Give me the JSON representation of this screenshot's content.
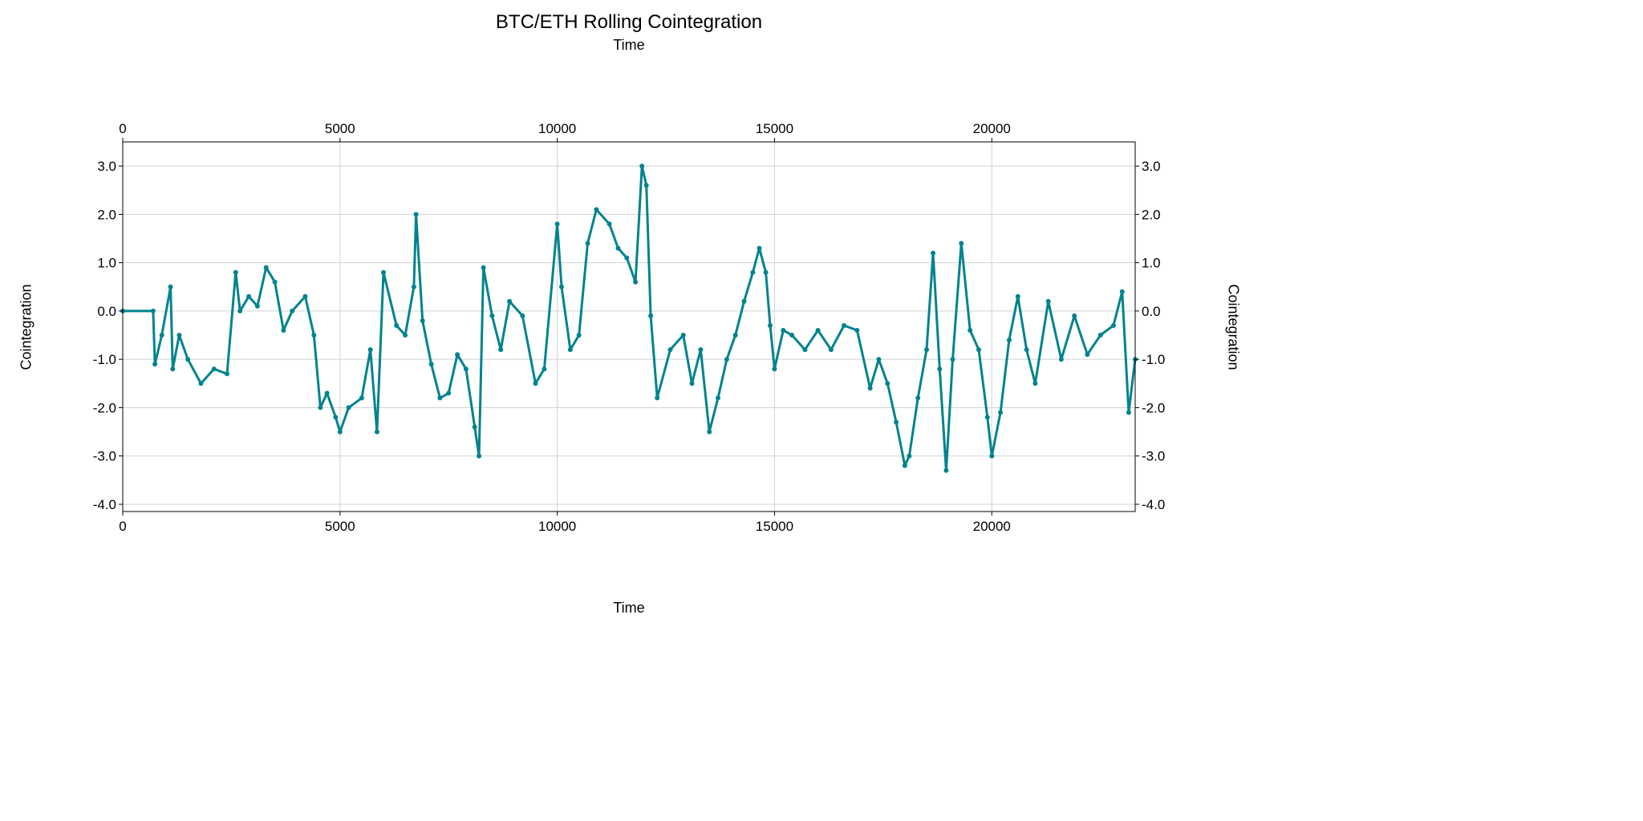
{
  "chart_data": {
    "type": "scatter",
    "title": "BTC/ETH Rolling Cointegration",
    "x_axis_top_label": "Time",
    "xlabel": "Time",
    "ylabel": "Cointegration",
    "ylabel_right": "Cointegration",
    "xlim": [
      0,
      23300
    ],
    "ylim": [
      -4.15,
      3.5
    ],
    "x_ticks": [
      "0",
      "5000",
      "10000",
      "15000",
      "20000"
    ],
    "y_ticks": [
      "3.0",
      "2.0",
      "1.0",
      "0.0",
      "-1.0",
      "-2.0",
      "-3.0",
      "-4.0"
    ],
    "grid": true,
    "line_style": "line with dot markers",
    "color": "#00838f",
    "series": [
      {
        "x": [
          0,
          700,
          740,
          900,
          1100,
          1150,
          1300,
          1500,
          1800,
          2100,
          2400,
          2600,
          2700,
          2900,
          3100,
          3300,
          3500,
          3700,
          3900,
          4200,
          4400,
          4550,
          4700,
          4900,
          5000,
          5200,
          5500,
          5700,
          5850,
          6000,
          6300,
          6500,
          6700,
          6750,
          6900,
          7100,
          7300,
          7500,
          7700,
          7900,
          8100,
          8200,
          8300,
          8500,
          8700,
          8900,
          9200,
          9500,
          9700,
          10000,
          10100,
          10300,
          10500,
          10700,
          10900,
          11200,
          11400,
          11600,
          11800,
          11950,
          12050,
          12150,
          12300,
          12600,
          12900,
          13100,
          13300,
          13500,
          13700,
          13900,
          14100,
          14300,
          14500,
          14650,
          14800,
          14900,
          15000,
          15200,
          15400,
          15700,
          16000,
          16300,
          16600,
          16900,
          17200,
          17400,
          17600,
          17800,
          18000,
          18100,
          18300,
          18500,
          18650,
          18800,
          18950,
          19100,
          19300,
          19500,
          19700,
          19900,
          20000,
          20200,
          20400,
          20600,
          20800,
          21000,
          21300,
          21600,
          21900,
          22200,
          22500,
          22800,
          23000,
          23150,
          23300
        ],
        "y": [
          0.0,
          0.0,
          -1.1,
          -0.5,
          0.5,
          -1.2,
          -0.5,
          -1.0,
          -1.5,
          -1.2,
          -1.3,
          0.8,
          0.0,
          0.3,
          0.1,
          0.9,
          0.6,
          -0.4,
          0.0,
          0.3,
          -0.5,
          -2.0,
          -1.7,
          -2.2,
          -2.5,
          -2.0,
          -1.8,
          -0.8,
          -2.5,
          0.8,
          -0.3,
          -0.5,
          0.5,
          2.0,
          -0.2,
          -1.1,
          -1.8,
          -1.7,
          -0.9,
          -1.2,
          -2.4,
          -3.0,
          0.9,
          -0.1,
          -0.8,
          0.2,
          -0.1,
          -1.5,
          -1.2,
          1.8,
          0.5,
          -0.8,
          -0.5,
          1.4,
          2.1,
          1.8,
          1.3,
          1.1,
          0.6,
          3.0,
          2.6,
          -0.1,
          -1.8,
          -0.8,
          -0.5,
          -1.5,
          -0.8,
          -2.5,
          -1.8,
          -1.0,
          -0.5,
          0.2,
          0.8,
          1.3,
          0.8,
          -0.3,
          -1.2,
          -0.4,
          -0.5,
          -0.8,
          -0.4,
          -0.8,
          -0.3,
          -0.4,
          -1.6,
          -1.0,
          -1.5,
          -2.3,
          -3.2,
          -3.0,
          -1.8,
          -0.8,
          1.2,
          -1.2,
          -3.3,
          -1.0,
          1.4,
          -0.4,
          -0.8,
          -2.2,
          -3.0,
          -2.1,
          -0.6,
          0.3,
          -0.8,
          -1.5,
          0.2,
          -1.0,
          -0.1,
          -0.9,
          -0.5,
          -0.3,
          0.4,
          -2.1,
          -1.0
        ]
      }
    ]
  }
}
